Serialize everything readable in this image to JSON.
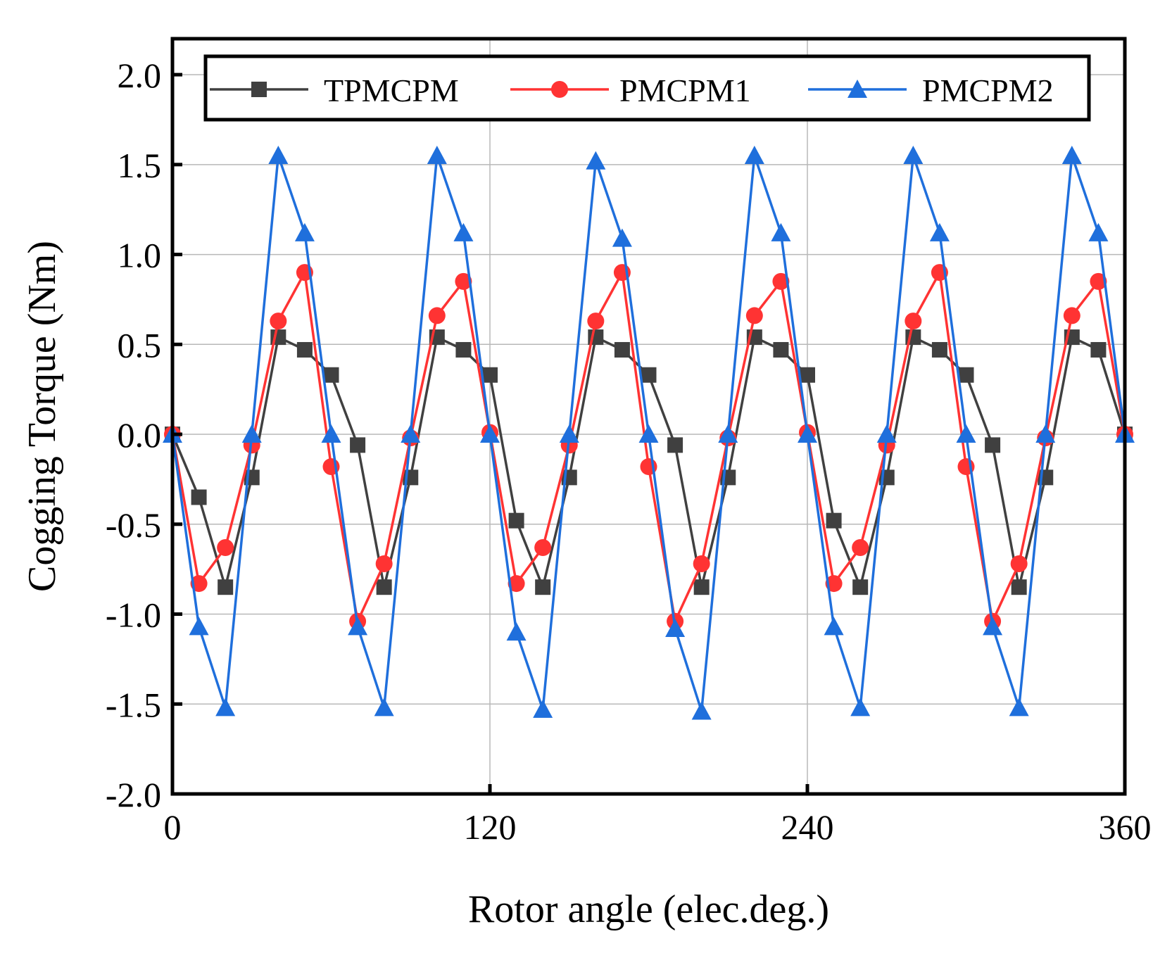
{
  "chart_data": {
    "type": "line",
    "title": "",
    "xlabel": "Rotor angle (elec.deg.)",
    "ylabel": "Cogging Torque (Nm)",
    "xlim": [
      0,
      360
    ],
    "ylim": [
      -2.0,
      2.2
    ],
    "xticks": [
      0,
      120,
      240,
      360
    ],
    "xtick_labels": [
      "0",
      "120",
      "240",
      "360"
    ],
    "yticks": [
      -2.0,
      -1.5,
      -1.0,
      -0.5,
      0.0,
      0.5,
      1.0,
      1.5,
      2.0
    ],
    "ytick_labels": [
      "-2.0",
      "-1.5",
      "-1.0",
      "-0.5",
      "0.0",
      "0.5",
      "1.0",
      "1.5",
      "2.0"
    ],
    "grid": true,
    "legend_position": "top",
    "series": [
      {
        "name": "TPMCPM",
        "color": "#404040",
        "marker": "square",
        "x": [
          0,
          10,
          20,
          30,
          40,
          50,
          60,
          70,
          80,
          90,
          100,
          110,
          120,
          130,
          140,
          150,
          160,
          170,
          180,
          190,
          200,
          210,
          220,
          230,
          240,
          250,
          260,
          270,
          280,
          290,
          300,
          310,
          320,
          330,
          340,
          350,
          360
        ],
        "values": [
          0.0,
          -0.35,
          -0.85,
          -0.24,
          0.54,
          0.47,
          0.33,
          -0.06,
          -0.85,
          -0.24,
          0.54,
          0.47,
          0.33,
          -0.48,
          -0.85,
          -0.24,
          0.54,
          0.47,
          0.33,
          -0.06,
          -0.85,
          -0.24,
          0.54,
          0.47,
          0.33,
          -0.48,
          -0.85,
          -0.24,
          0.54,
          0.47,
          0.33,
          -0.06,
          -0.85,
          -0.24,
          0.54,
          0.47,
          0.0
        ]
      },
      {
        "name": "PMCPM1",
        "color": "#ff3333",
        "marker": "circle",
        "x": [
          0,
          10,
          20,
          30,
          40,
          50,
          60,
          70,
          80,
          90,
          100,
          110,
          120,
          130,
          140,
          150,
          160,
          170,
          180,
          190,
          200,
          210,
          220,
          230,
          240,
          250,
          260,
          270,
          280,
          290,
          300,
          310,
          320,
          330,
          340,
          350,
          360
        ],
        "values": [
          0.0,
          -0.83,
          -0.63,
          -0.06,
          0.63,
          0.9,
          -0.18,
          -1.04,
          -0.72,
          -0.02,
          0.66,
          0.85,
          0.01,
          -0.83,
          -0.63,
          -0.06,
          0.63,
          0.9,
          -0.18,
          -1.04,
          -0.72,
          -0.02,
          0.66,
          0.85,
          0.01,
          -0.83,
          -0.63,
          -0.06,
          0.63,
          0.9,
          -0.18,
          -1.04,
          -0.72,
          -0.02,
          0.66,
          0.85,
          0.0
        ]
      },
      {
        "name": "PMCPM2",
        "color": "#1f6fdc",
        "marker": "triangle",
        "x": [
          0,
          10,
          20,
          30,
          40,
          50,
          60,
          70,
          80,
          90,
          100,
          110,
          120,
          130,
          140,
          150,
          160,
          170,
          180,
          190,
          200,
          210,
          220,
          230,
          240,
          250,
          260,
          270,
          280,
          290,
          300,
          310,
          320,
          330,
          340,
          350,
          360
        ],
        "values": [
          0.0,
          -1.07,
          -1.52,
          0.0,
          1.55,
          1.12,
          0.0,
          -1.07,
          -1.52,
          0.0,
          1.55,
          1.12,
          0.0,
          -1.1,
          -1.53,
          0.0,
          1.52,
          1.09,
          0.0,
          -1.08,
          -1.54,
          0.0,
          1.55,
          1.12,
          0.0,
          -1.07,
          -1.52,
          0.0,
          1.55,
          1.12,
          0.0,
          -1.07,
          -1.52,
          0.0,
          1.55,
          1.12,
          0.0
        ]
      }
    ]
  }
}
